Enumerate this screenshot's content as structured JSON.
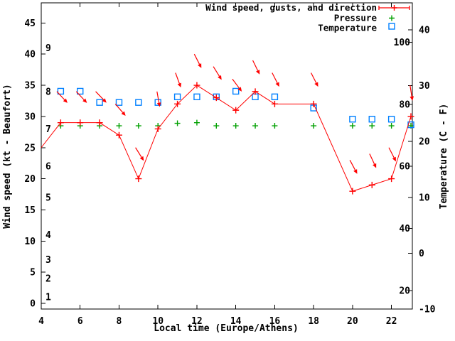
{
  "page": {
    "background": "#ffffff"
  },
  "chart_data": {
    "type": "line",
    "title": "",
    "xlabel": "Local time (Europe/Athens)",
    "ylabel_left": "Wind speed (kt - Beaufort)",
    "ylabel_right": "Temperature (C - F)",
    "grid": false,
    "legend_position": "top-right-inside",
    "x_axis": {
      "range": [
        4,
        23.07
      ],
      "tick_labels": [
        "4",
        "6",
        "8",
        "10",
        "12",
        "14",
        "16",
        "18",
        "20",
        "22"
      ],
      "tick_values": [
        4,
        6,
        8,
        10,
        12,
        14,
        16,
        18,
        20,
        22
      ]
    },
    "wind_axis": {
      "units": "kt",
      "tick_values": [
        0,
        5,
        10,
        15,
        20,
        25,
        30,
        35,
        40,
        45
      ],
      "tick_labels": [
        "0",
        "5",
        "10",
        "15",
        "20",
        "25",
        "30",
        "35",
        "40",
        "45"
      ],
      "beaufort_labels": [
        {
          "label": "1",
          "kt": 1
        },
        {
          "label": "2",
          "kt": 4
        },
        {
          "label": "3",
          "kt": 7
        },
        {
          "label": "4",
          "kt": 11
        },
        {
          "label": "5",
          "kt": 17
        },
        {
          "label": "6",
          "kt": 22
        },
        {
          "label": "7",
          "kt": 28
        },
        {
          "label": "8",
          "kt": 34
        },
        {
          "label": "9",
          "kt": 41
        }
      ]
    },
    "temp_axis": {
      "units_outside": "C",
      "tick_values_c": [
        -10,
        0,
        10,
        20,
        30,
        40
      ],
      "tick_labels_c": [
        "-10",
        "0",
        "10",
        "20",
        "30",
        "40"
      ],
      "units_inside": "F",
      "tick_values_f": [
        20,
        40,
        60,
        80,
        100
      ],
      "tick_labels_f": [
        "20",
        "40",
        "60",
        "80",
        "100"
      ]
    },
    "series": [
      {
        "name": "Wind speed, gusts, and direction",
        "color": "#ff0000",
        "marker": "plus",
        "axis": "kt",
        "points": [
          {
            "t": 4,
            "kt": 25,
            "marker": false
          },
          {
            "t": 5,
            "kt": 29
          },
          {
            "t": 6,
            "kt": 29
          },
          {
            "t": 7,
            "kt": 29
          },
          {
            "t": 8,
            "kt": 27
          },
          {
            "t": 9,
            "kt": 20
          },
          {
            "t": 10,
            "kt": 28
          },
          {
            "t": 11,
            "kt": 32
          },
          {
            "t": 12,
            "kt": 35
          },
          {
            "t": 13,
            "kt": 33
          },
          {
            "t": 14,
            "kt": 31
          },
          {
            "t": 15,
            "kt": 34
          },
          {
            "t": 16,
            "kt": 32
          },
          {
            "t": 18,
            "kt": 32
          },
          {
            "t": 20,
            "kt": 18
          },
          {
            "t": 21,
            "kt": 19
          },
          {
            "t": 22,
            "kt": 20
          },
          {
            "t": 23,
            "kt": 30
          }
        ]
      },
      {
        "name": "Pressure",
        "color": "#00a000",
        "marker": "plus",
        "axis": "kt-equivalent (pressure axis not shown)",
        "points": [
          {
            "t": 5,
            "kt": 28.5
          },
          {
            "t": 6,
            "kt": 28.5
          },
          {
            "t": 7,
            "kt": 28.5
          },
          {
            "t": 8,
            "kt": 28.5
          },
          {
            "t": 9,
            "kt": 28.5
          },
          {
            "t": 10,
            "kt": 28.5
          },
          {
            "t": 11,
            "kt": 28.9
          },
          {
            "t": 12,
            "kt": 29.0
          },
          {
            "t": 13,
            "kt": 28.5
          },
          {
            "t": 14,
            "kt": 28.5
          },
          {
            "t": 15,
            "kt": 28.5
          },
          {
            "t": 16,
            "kt": 28.5
          },
          {
            "t": 18,
            "kt": 28.5
          },
          {
            "t": 20,
            "kt": 28.5
          },
          {
            "t": 21,
            "kt": 28.5
          },
          {
            "t": 22,
            "kt": 28.5
          },
          {
            "t": 23,
            "kt": 28.5
          }
        ]
      },
      {
        "name": "Temperature",
        "color": "#0080ff",
        "marker": "square",
        "axis": "C",
        "points": [
          {
            "t": 5,
            "c": 29
          },
          {
            "t": 6,
            "c": 29
          },
          {
            "t": 7,
            "c": 27
          },
          {
            "t": 8,
            "c": 27
          },
          {
            "t": 9,
            "c": 27
          },
          {
            "t": 10,
            "c": 27
          },
          {
            "t": 11,
            "c": 28
          },
          {
            "t": 12,
            "c": 28
          },
          {
            "t": 13,
            "c": 28
          },
          {
            "t": 14,
            "c": 29
          },
          {
            "t": 15,
            "c": 28
          },
          {
            "t": 16,
            "c": 28
          },
          {
            "t": 18,
            "c": 26
          },
          {
            "t": 20,
            "c": 24
          },
          {
            "t": 21,
            "c": 24
          },
          {
            "t": 22,
            "c": 24
          },
          {
            "t": 23,
            "c": 23
          }
        ]
      }
    ],
    "gust_arrows": {
      "description": "red arrows: tail at gust speed (kt), pointing in wind direction (screen compass, up=N)",
      "color": "#ff0000",
      "points": [
        {
          "t": 5,
          "gust_kt": 34,
          "dir_deg": 137
        },
        {
          "t": 6,
          "gust_kt": 34,
          "dir_deg": 137
        },
        {
          "t": 7,
          "gust_kt": 34,
          "dir_deg": 136
        },
        {
          "t": 8,
          "gust_kt": 32,
          "dir_deg": 139
        },
        {
          "t": 9,
          "gust_kt": 25,
          "dir_deg": 148
        },
        {
          "t": 10,
          "gust_kt": 34,
          "dir_deg": 170
        },
        {
          "t": 11,
          "gust_kt": 37,
          "dir_deg": 160
        },
        {
          "t": 12,
          "gust_kt": 40,
          "dir_deg": 153
        },
        {
          "t": 13,
          "gust_kt": 38,
          "dir_deg": 148
        },
        {
          "t": 14,
          "gust_kt": 36,
          "dir_deg": 143
        },
        {
          "t": 15,
          "gust_kt": 39,
          "dir_deg": 154
        },
        {
          "t": 16,
          "gust_kt": 37,
          "dir_deg": 153
        },
        {
          "t": 18,
          "gust_kt": 37,
          "dir_deg": 153
        },
        {
          "t": 20,
          "gust_kt": 23,
          "dir_deg": 152
        },
        {
          "t": 21,
          "gust_kt": 24,
          "dir_deg": 155
        },
        {
          "t": 22,
          "gust_kt": 25,
          "dir_deg": 153
        },
        {
          "t": 23,
          "gust_kt": 35,
          "dir_deg": 171
        }
      ]
    }
  }
}
